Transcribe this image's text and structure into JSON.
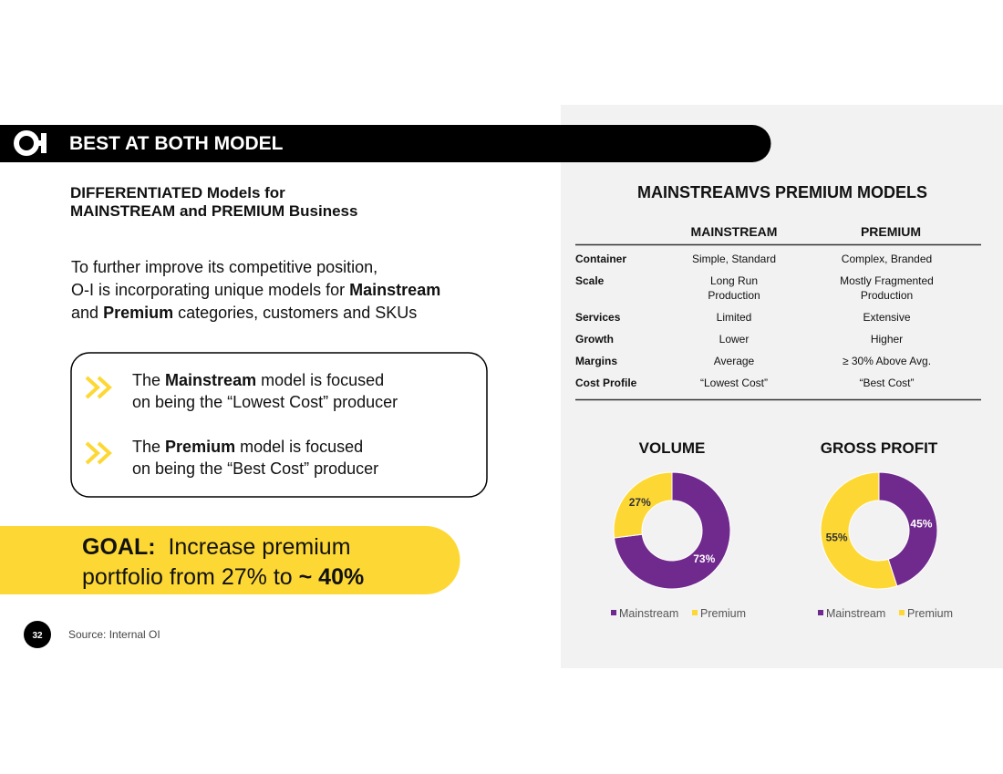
{
  "header": {
    "title": "BEST AT BOTH MODEL"
  },
  "subtitle": [
    "DIFFERENTIATED Models for",
    "MAINSTREAM and PREMIUM Business"
  ],
  "intro": [
    "To further improve its competitive position,",
    "O-I is incorporating unique models for",
    "Mainstream",
    "and",
    "Premium",
    "categories, customers and SKUs"
  ],
  "bullets": [
    [
      "The",
      "Mainstream",
      "model is focused",
      "on being the “Lowest Cost” producer"
    ],
    [
      "The",
      "Premium",
      "model is focused",
      "on being the “Best Cost” producer"
    ]
  ],
  "goal": [
    "GOAL:",
    "Increase premium",
    "portfolio from 27% to",
    "~ 40%"
  ],
  "footer": {
    "page": "32",
    "source": "Source: Internal OI"
  },
  "table": {
    "title": "MAINSTREAMVS PREMIUM MODELS",
    "columns": [
      "MAINSTREAM",
      "PREMIUM"
    ],
    "rows": [
      [
        "Container",
        "Simple, Standard",
        "Complex, Branded"
      ],
      [
        "Scale",
        "Long Run Production",
        "Mostly Fragmented Production"
      ],
      [
        "Services",
        "Limited",
        "Extensive"
      ],
      [
        "Growth",
        "Lower",
        "Higher"
      ],
      [
        "Margins",
        "Average",
        "≥ 30% Above Avg."
      ],
      [
        "Cost Profile",
        "“Lowest Cost”",
        "“Best Cost”"
      ]
    ]
  },
  "chart_data": [
    {
      "type": "pie",
      "title": "VOLUME",
      "categories": [
        "Mainstream",
        "Premium"
      ],
      "values": [
        73,
        27
      ],
      "value_labels": [
        "73%",
        "27%"
      ],
      "colors": [
        "#70298d",
        "#fdd835"
      ],
      "donut": true
    },
    {
      "type": "pie",
      "title": "GROSS PROFIT",
      "categories": [
        "Mainstream",
        "Premium"
      ],
      "values": [
        45,
        55
      ],
      "value_labels": [
        "45%",
        "55%"
      ],
      "colors": [
        "#70298d",
        "#fdd835"
      ],
      "donut": true
    }
  ]
}
